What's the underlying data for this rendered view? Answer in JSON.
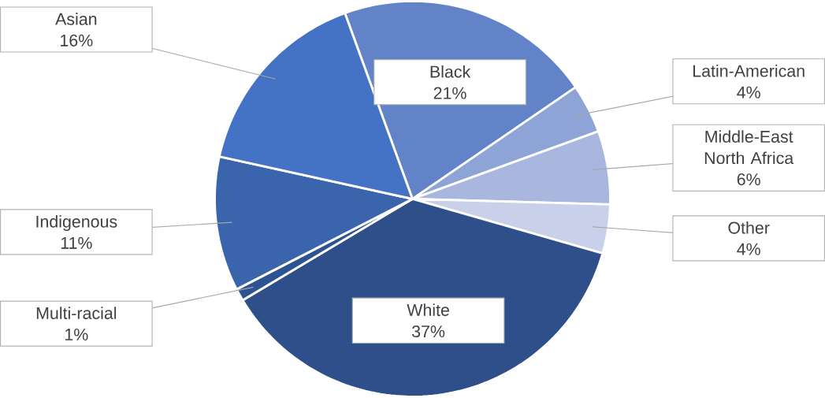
{
  "chart_data": {
    "type": "pie",
    "categories": [
      "Black",
      "Latin-American",
      "Middle-East North Africa",
      "Other",
      "White",
      "Multi-racial",
      "Indigenous",
      "Asian"
    ],
    "values": [
      21,
      4,
      6,
      4,
      37,
      1,
      11,
      16
    ],
    "value_labels": [
      "21%",
      "4%",
      "6%",
      "4%",
      "37%",
      "1%",
      "11%",
      "16%"
    ],
    "colors": [
      "#6283c8",
      "#8ea3d6",
      "#a9b7de",
      "#c8d0ea",
      "#2f4f8a",
      "#2e5395",
      "#3a64ab",
      "#4472c4"
    ]
  }
}
